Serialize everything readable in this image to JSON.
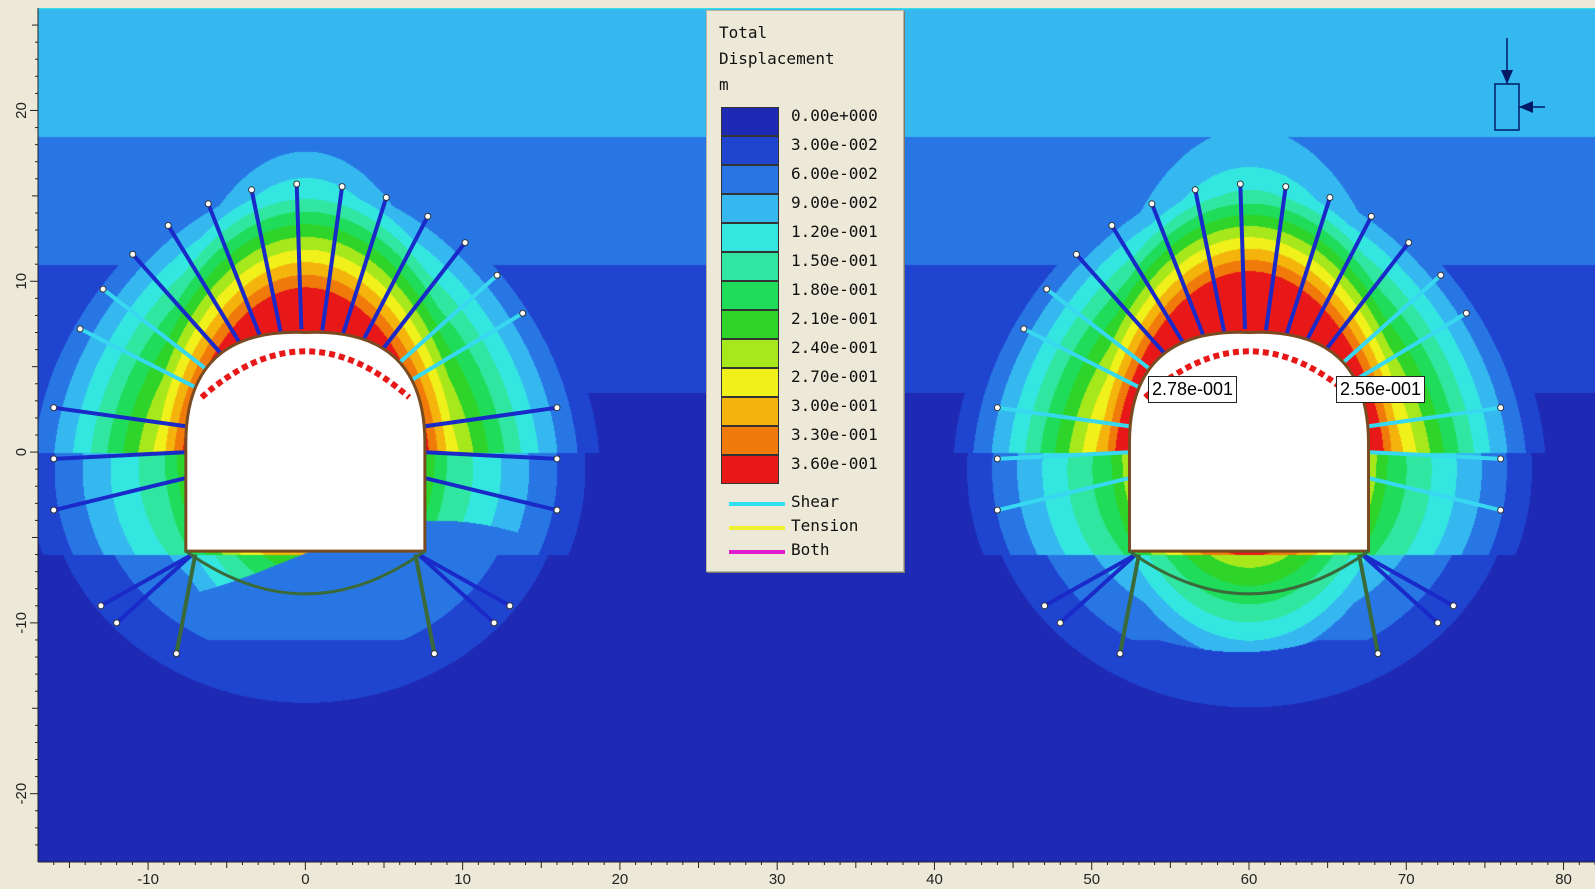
{
  "legend": {
    "title_lines": [
      "Total",
      "Displacement",
      "m"
    ],
    "bins": [
      {
        "label": "0.00e+000",
        "color": "#1e2ab4"
      },
      {
        "label": "3.00e-002",
        "color": "#1f45d0"
      },
      {
        "label": "6.00e-002",
        "color": "#2876e4"
      },
      {
        "label": "9.00e-002",
        "color": "#35b8f0"
      },
      {
        "label": "1.20e-001",
        "color": "#34e6e0"
      },
      {
        "label": "1.50e-001",
        "color": "#30e6a0"
      },
      {
        "label": "1.80e-001",
        "color": "#1fdc5a"
      },
      {
        "label": "2.10e-001",
        "color": "#2fd42a"
      },
      {
        "label": "2.40e-001",
        "color": "#a6e81c"
      },
      {
        "label": "2.70e-001",
        "color": "#f0f01a"
      },
      {
        "label": "3.00e-001",
        "color": "#f4b40c"
      },
      {
        "label": "3.30e-001",
        "color": "#f07a0a"
      },
      {
        "label": "3.60e-001",
        "color": "#e81818"
      }
    ],
    "lines": [
      {
        "label": "Shear",
        "color": "#30e0f0"
      },
      {
        "label": "Tension",
        "color": "#f0f030"
      },
      {
        "label": "Both",
        "color": "#e020d0"
      }
    ]
  },
  "callouts": [
    {
      "text": "2.78e-001"
    },
    {
      "text": "2.56e-001"
    }
  ],
  "x_ticks": [
    "-10",
    "0",
    "10",
    "20",
    "30",
    "40",
    "50",
    "60",
    "70",
    "80"
  ],
  "y_ticks": [
    "20",
    "10",
    "0",
    "-10",
    "-20"
  ],
  "chart_data": {
    "type": "contour",
    "quantity": "Total Displacement",
    "unit": "m",
    "contour_levels": [
      0.0,
      0.03,
      0.06,
      0.09,
      0.12,
      0.15,
      0.18,
      0.21,
      0.24,
      0.27,
      0.3,
      0.33,
      0.36
    ],
    "xlim": [
      -17,
      82
    ],
    "ylim": [
      -24,
      26
    ],
    "x_ticks": [
      -10,
      0,
      10,
      20,
      30,
      40,
      50,
      60,
      70,
      80
    ],
    "y_ticks": [
      20,
      10,
      0,
      -10,
      -20
    ],
    "tunnels": [
      {
        "center_x": 0,
        "center_y": 0,
        "max_displacement_label": null
      },
      {
        "center_x": 60,
        "center_y": 0
      }
    ],
    "annotations": [
      {
        "text": "2.78e-001",
        "x": 53,
        "y": 3.5
      },
      {
        "text": "2.56e-001",
        "x": 66,
        "y": 3.5
      }
    ]
  },
  "colors": {
    "deep_blue": "#1e2ab4",
    "bolt_blue": "#1a2ac8",
    "liner_red": "#e81818",
    "invert": "#3a6a3a"
  }
}
